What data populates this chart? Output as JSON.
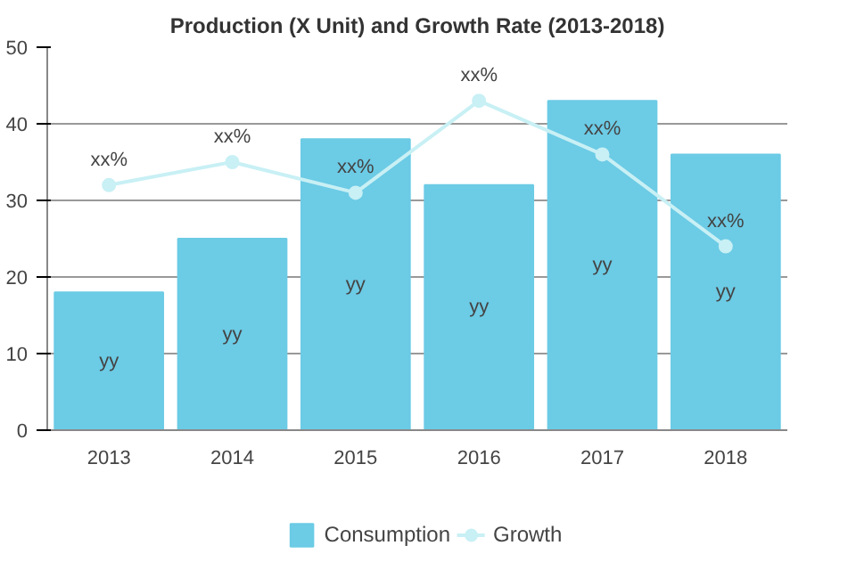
{
  "chart_data": {
    "type": "bar",
    "title": "Production (X Unit) and Growth Rate (2013-2018)",
    "categories": [
      "2013",
      "2014",
      "2015",
      "2016",
      "2017",
      "2018"
    ],
    "series": [
      {
        "name": "Consumption",
        "color": "#6ccbe5",
        "values": [
          18,
          25,
          38,
          32,
          43,
          36
        ],
        "value_labels": [
          "yy",
          "yy",
          "yy",
          "yy",
          "yy",
          "yy"
        ]
      },
      {
        "name": "Growth",
        "type": "line",
        "color": "#c8f0f5",
        "values": [
          32,
          35,
          31,
          43,
          36,
          24
        ],
        "value_labels": [
          "xx%",
          "xx%",
          "xx%",
          "xx%",
          "xx%",
          "xx%"
        ],
        "marker": "circle"
      }
    ],
    "ylim": [
      0,
      50
    ],
    "yticks": [
      0,
      10,
      20,
      30,
      40,
      50
    ],
    "grid": "y",
    "legend": "bottom"
  }
}
